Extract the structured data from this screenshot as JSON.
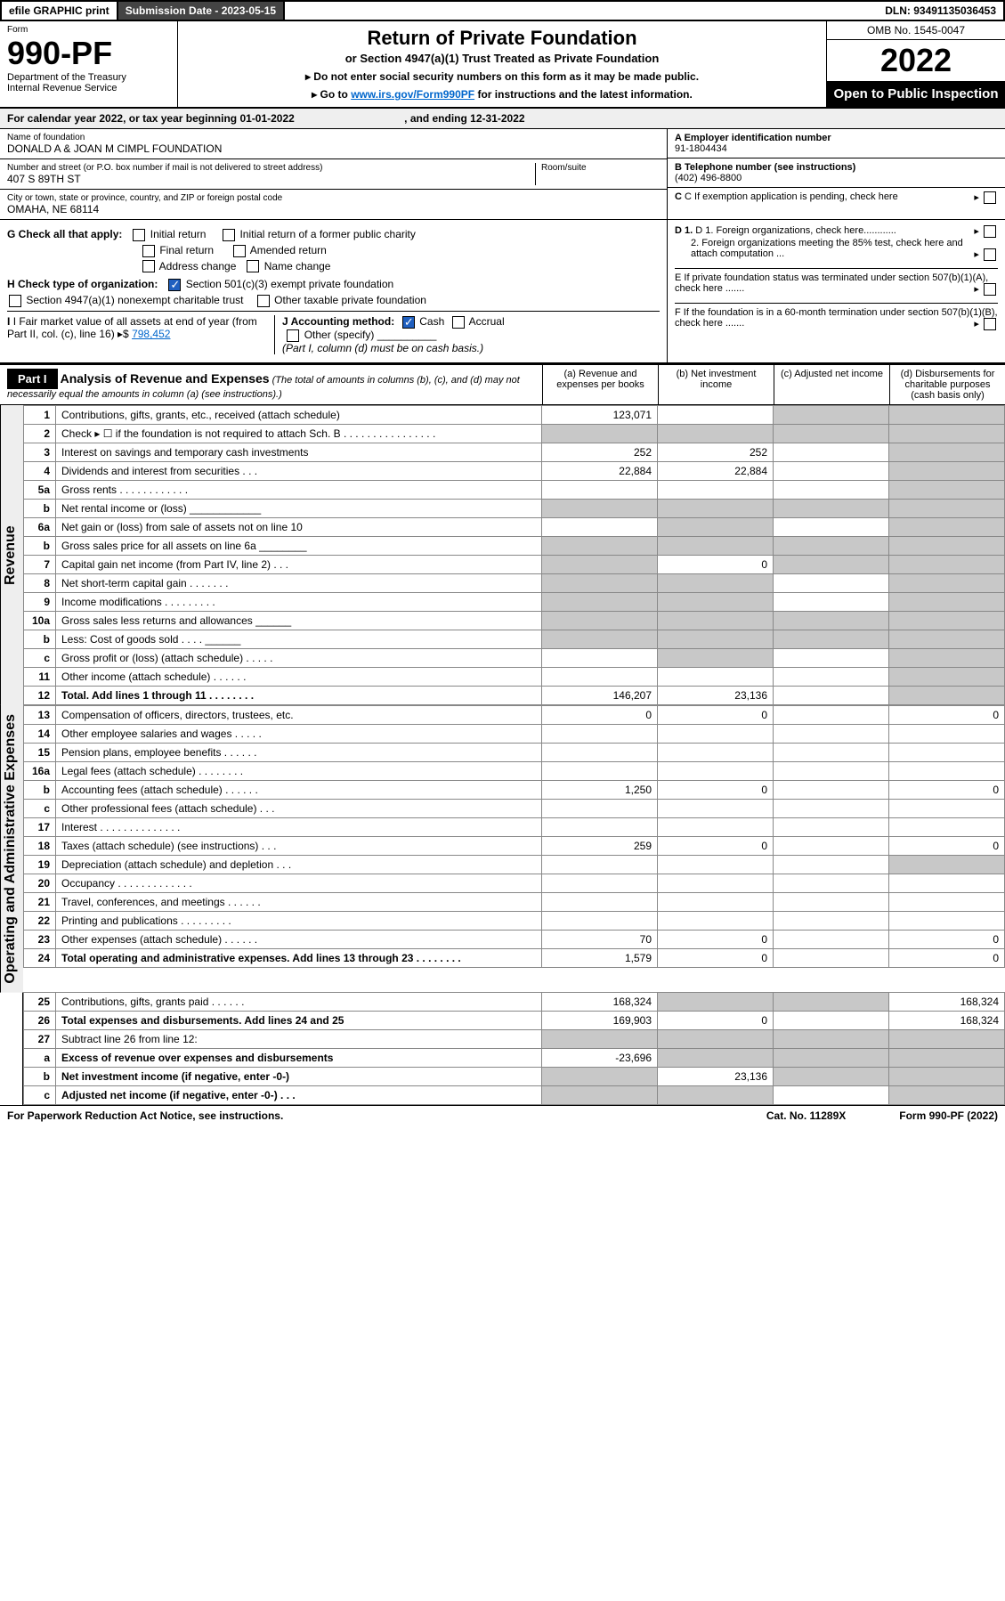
{
  "topbar": {
    "efile": "efile GRAPHIC print",
    "submission_label": "Submission Date - 2023-05-15",
    "dln": "DLN: 93491135036453"
  },
  "header": {
    "form_label": "Form",
    "form_number": "990-PF",
    "dept1": "Department of the Treasury",
    "dept2": "Internal Revenue Service",
    "title": "Return of Private Foundation",
    "subtitle": "or Section 4947(a)(1) Trust Treated as Private Foundation",
    "note1": "▸ Do not enter social security numbers on this form as it may be made public.",
    "note2_pre": "▸ Go to ",
    "note2_link": "www.irs.gov/Form990PF",
    "note2_post": " for instructions and the latest information.",
    "omb": "OMB No. 1545-0047",
    "year": "2022",
    "open": "Open to Public Inspection"
  },
  "calyear": {
    "text_a": "For calendar year 2022, or tax year beginning 01-01-2022",
    "text_b": ", and ending 12-31-2022"
  },
  "id": {
    "name_lbl": "Name of foundation",
    "name": "DONALD A & JOAN M CIMPL FOUNDATION",
    "street_lbl": "Number and street (or P.O. box number if mail is not delivered to street address)",
    "street": "407 S 89TH ST",
    "room_lbl": "Room/suite",
    "city_lbl": "City or town, state or province, country, and ZIP or foreign postal code",
    "city": "OMAHA, NE  68114",
    "ein_lbl": "A Employer identification number",
    "ein": "91-1804434",
    "phone_lbl": "B Telephone number (see instructions)",
    "phone": "(402) 496-8800",
    "c_lbl": "C If exemption application is pending, check here",
    "d1": "D 1. Foreign organizations, check here............",
    "d2": "2. Foreign organizations meeting the 85% test, check here and attach computation ...",
    "e": "E  If private foundation status was terminated under section 507(b)(1)(A), check here .......",
    "f": "F  If the foundation is in a 60-month termination under section 507(b)(1)(B), check here .......",
    "g_lbl": "G Check all that apply:",
    "g_opts": [
      "Initial return",
      "Final return",
      "Address change",
      "Initial return of a former public charity",
      "Amended return",
      "Name change"
    ],
    "h_lbl": "H Check type of organization:",
    "h1": "Section 501(c)(3) exempt private foundation",
    "h2": "Section 4947(a)(1) nonexempt charitable trust",
    "h3": "Other taxable private foundation",
    "i_lbl": "I Fair market value of all assets at end of year (from Part II, col. (c), line 16)",
    "i_val": "798,452",
    "j_lbl": "J Accounting method:",
    "j_cash": "Cash",
    "j_accr": "Accrual",
    "j_other": "Other (specify)",
    "j_note": "(Part I, column (d) must be on cash basis.)"
  },
  "part1": {
    "label": "Part I",
    "title": "Analysis of Revenue and Expenses",
    "title_note": "(The total of amounts in columns (b), (c), and (d) may not necessarily equal the amounts in column (a) (see instructions).)",
    "col_a": "(a)  Revenue and expenses per books",
    "col_b": "(b)  Net investment income",
    "col_c": "(c)  Adjusted net income",
    "col_d": "(d)  Disbursements for charitable purposes (cash basis only)"
  },
  "side_labels": {
    "rev": "Revenue",
    "exp": "Operating and Administrative Expenses"
  },
  "rows": [
    {
      "n": "1",
      "d": "Contributions, gifts, grants, etc., received (attach schedule)",
      "a": "123,071",
      "b": "",
      "c": "sh",
      "dcol": "sh"
    },
    {
      "n": "2",
      "d": "Check ▸ ☐ if the foundation is not required to attach Sch. B  .  .  .  .  .  .  .  .  .  .  .  .  .  .  .  .",
      "a": "sh",
      "b": "sh",
      "c": "sh",
      "dcol": "sh"
    },
    {
      "n": "3",
      "d": "Interest on savings and temporary cash investments",
      "a": "252",
      "b": "252",
      "c": "",
      "dcol": "sh"
    },
    {
      "n": "4",
      "d": "Dividends and interest from securities  .  .  .",
      "a": "22,884",
      "b": "22,884",
      "c": "",
      "dcol": "sh"
    },
    {
      "n": "5a",
      "d": "Gross rents  .  .  .  .  .  .  .  .  .  .  .  .",
      "a": "",
      "b": "",
      "c": "",
      "dcol": "sh"
    },
    {
      "n": "b",
      "d": "Net rental income or (loss)  ____________",
      "a": "sh",
      "b": "sh",
      "c": "sh",
      "dcol": "sh"
    },
    {
      "n": "6a",
      "d": "Net gain or (loss) from sale of assets not on line 10",
      "a": "",
      "b": "sh",
      "c": "",
      "dcol": "sh"
    },
    {
      "n": "b",
      "d": "Gross sales price for all assets on line 6a ________",
      "a": "sh",
      "b": "sh",
      "c": "sh",
      "dcol": "sh"
    },
    {
      "n": "7",
      "d": "Capital gain net income (from Part IV, line 2)  .  .  .",
      "a": "sh",
      "b": "0",
      "c": "sh",
      "dcol": "sh"
    },
    {
      "n": "8",
      "d": "Net short-term capital gain  .  .  .  .  .  .  .",
      "a": "sh",
      "b": "sh",
      "c": "",
      "dcol": "sh"
    },
    {
      "n": "9",
      "d": "Income modifications  .  .  .  .  .  .  .  .  .",
      "a": "sh",
      "b": "sh",
      "c": "",
      "dcol": "sh"
    },
    {
      "n": "10a",
      "d": "Gross sales less returns and allowances  ______",
      "a": "sh",
      "b": "sh",
      "c": "sh",
      "dcol": "sh"
    },
    {
      "n": "b",
      "d": "Less: Cost of goods sold  .  .  .  .  ______",
      "a": "sh",
      "b": "sh",
      "c": "sh",
      "dcol": "sh"
    },
    {
      "n": "c",
      "d": "Gross profit or (loss) (attach schedule)  .  .  .  .  .",
      "a": "",
      "b": "sh",
      "c": "",
      "dcol": "sh"
    },
    {
      "n": "11",
      "d": "Other income (attach schedule)  .  .  .  .  .  .",
      "a": "",
      "b": "",
      "c": "",
      "dcol": "sh"
    },
    {
      "n": "12",
      "d": "Total. Add lines 1 through 11  .  .  .  .  .  .  .  .",
      "a": "146,207",
      "b": "23,136",
      "c": "",
      "dcol": "sh",
      "bold": true
    },
    {
      "n": "13",
      "d": "Compensation of officers, directors, trustees, etc.",
      "a": "0",
      "b": "0",
      "c": "",
      "dcol": "0"
    },
    {
      "n": "14",
      "d": "Other employee salaries and wages  .  .  .  .  .",
      "a": "",
      "b": "",
      "c": "",
      "dcol": ""
    },
    {
      "n": "15",
      "d": "Pension plans, employee benefits  .  .  .  .  .  .",
      "a": "",
      "b": "",
      "c": "",
      "dcol": ""
    },
    {
      "n": "16a",
      "d": "Legal fees (attach schedule)  .  .  .  .  .  .  .  .",
      "a": "",
      "b": "",
      "c": "",
      "dcol": ""
    },
    {
      "n": "b",
      "d": "Accounting fees (attach schedule)  .  .  .  .  .  .",
      "a": "1,250",
      "b": "0",
      "c": "",
      "dcol": "0"
    },
    {
      "n": "c",
      "d": "Other professional fees (attach schedule)  .  .  .",
      "a": "",
      "b": "",
      "c": "",
      "dcol": ""
    },
    {
      "n": "17",
      "d": "Interest  .  .  .  .  .  .  .  .  .  .  .  .  .  .",
      "a": "",
      "b": "",
      "c": "",
      "dcol": ""
    },
    {
      "n": "18",
      "d": "Taxes (attach schedule) (see instructions)  .  .  .",
      "a": "259",
      "b": "0",
      "c": "",
      "dcol": "0"
    },
    {
      "n": "19",
      "d": "Depreciation (attach schedule) and depletion  .  .  .",
      "a": "",
      "b": "",
      "c": "",
      "dcol": "sh"
    },
    {
      "n": "20",
      "d": "Occupancy  .  .  .  .  .  .  .  .  .  .  .  .  .",
      "a": "",
      "b": "",
      "c": "",
      "dcol": ""
    },
    {
      "n": "21",
      "d": "Travel, conferences, and meetings  .  .  .  .  .  .",
      "a": "",
      "b": "",
      "c": "",
      "dcol": ""
    },
    {
      "n": "22",
      "d": "Printing and publications  .  .  .  .  .  .  .  .  .",
      "a": "",
      "b": "",
      "c": "",
      "dcol": ""
    },
    {
      "n": "23",
      "d": "Other expenses (attach schedule)  .  .  .  .  .  .",
      "a": "70",
      "b": "0",
      "c": "",
      "dcol": "0"
    },
    {
      "n": "24",
      "d": "Total operating and administrative expenses. Add lines 13 through 23  .  .  .  .  .  .  .  .",
      "a": "1,579",
      "b": "0",
      "c": "",
      "dcol": "0",
      "bold": true
    },
    {
      "n": "25",
      "d": "Contributions, gifts, grants paid  .  .  .  .  .  .",
      "a": "168,324",
      "b": "sh",
      "c": "sh",
      "dcol": "168,324"
    },
    {
      "n": "26",
      "d": "Total expenses and disbursements. Add lines 24 and 25",
      "a": "169,903",
      "b": "0",
      "c": "",
      "dcol": "168,324",
      "bold": true
    },
    {
      "n": "27",
      "d": "Subtract line 26 from line 12:",
      "a": "sh",
      "b": "sh",
      "c": "sh",
      "dcol": "sh"
    },
    {
      "n": "a",
      "d": "Excess of revenue over expenses and disbursements",
      "a": "-23,696",
      "b": "sh",
      "c": "sh",
      "dcol": "sh",
      "bold": true
    },
    {
      "n": "b",
      "d": "Net investment income (if negative, enter -0-)",
      "a": "sh",
      "b": "23,136",
      "c": "sh",
      "dcol": "sh",
      "bold": true
    },
    {
      "n": "c",
      "d": "Adjusted net income (if negative, enter -0-)  .  .  .",
      "a": "sh",
      "b": "sh",
      "c": "",
      "dcol": "sh",
      "bold": true
    }
  ],
  "footer": {
    "left": "For Paperwork Reduction Act Notice, see instructions.",
    "mid": "Cat. No. 11289X",
    "right": "Form 990-PF (2022)"
  },
  "colors": {
    "shade": "#c8c8c8",
    "link": "#0066cc",
    "darkseg": "#444444"
  }
}
